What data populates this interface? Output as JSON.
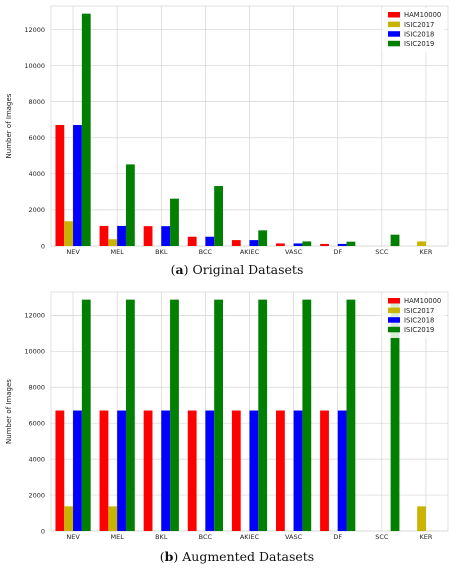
{
  "captions": [
    {
      "letter": "a",
      "text": "Original Datasets"
    },
    {
      "letter": "b",
      "text": "Augmented Datasets"
    }
  ],
  "chart_data": [
    {
      "type": "bar",
      "categories": [
        "NEV",
        "MEL",
        "BKL",
        "BCC",
        "AKIEC",
        "VASC",
        "DF",
        "SCC",
        "KER"
      ],
      "ylabel": "Number of Images",
      "xlabel": "",
      "ylim": [
        0,
        13300
      ],
      "yticks": [
        0,
        2000,
        4000,
        6000,
        8000,
        10000,
        12000
      ],
      "grid": true,
      "legend_position": "top-right",
      "series": [
        {
          "name": "HAM10000",
          "color": "#ff0000",
          "values": [
            6705,
            1113,
            1099,
            514,
            327,
            142,
            115,
            0,
            0
          ]
        },
        {
          "name": "ISIC2017",
          "color": "#c8b400",
          "values": [
            1372,
            374,
            0,
            0,
            0,
            0,
            0,
            0,
            254
          ]
        },
        {
          "name": "ISIC2018",
          "color": "#0000ff",
          "values": [
            6705,
            1113,
            1099,
            514,
            327,
            142,
            115,
            0,
            0
          ]
        },
        {
          "name": "ISIC2019",
          "color": "#007f00",
          "values": [
            12875,
            4522,
            2624,
            3323,
            867,
            253,
            239,
            628,
            0
          ]
        }
      ]
    },
    {
      "type": "bar",
      "categories": [
        "NEV",
        "MEL",
        "BKL",
        "BCC",
        "AKIEC",
        "VASC",
        "DF",
        "SCC",
        "KER"
      ],
      "ylabel": "Number of Images",
      "xlabel": "",
      "ylim": [
        0,
        13300
      ],
      "yticks": [
        0,
        2000,
        4000,
        6000,
        8000,
        10000,
        12000
      ],
      "grid": true,
      "legend_position": "top-right",
      "series": [
        {
          "name": "HAM10000",
          "color": "#ff0000",
          "values": [
            6705,
            6705,
            6705,
            6705,
            6705,
            6705,
            6705,
            0,
            0
          ]
        },
        {
          "name": "ISIC2017",
          "color": "#c8b400",
          "values": [
            1372,
            1372,
            0,
            0,
            0,
            0,
            0,
            0,
            1372
          ]
        },
        {
          "name": "ISIC2018",
          "color": "#0000ff",
          "values": [
            6705,
            6705,
            6705,
            6705,
            6705,
            6705,
            6705,
            0,
            0
          ]
        },
        {
          "name": "ISIC2019",
          "color": "#007f00",
          "values": [
            12875,
            12875,
            12875,
            12875,
            12875,
            12875,
            12875,
            12875,
            0
          ]
        }
      ]
    }
  ]
}
